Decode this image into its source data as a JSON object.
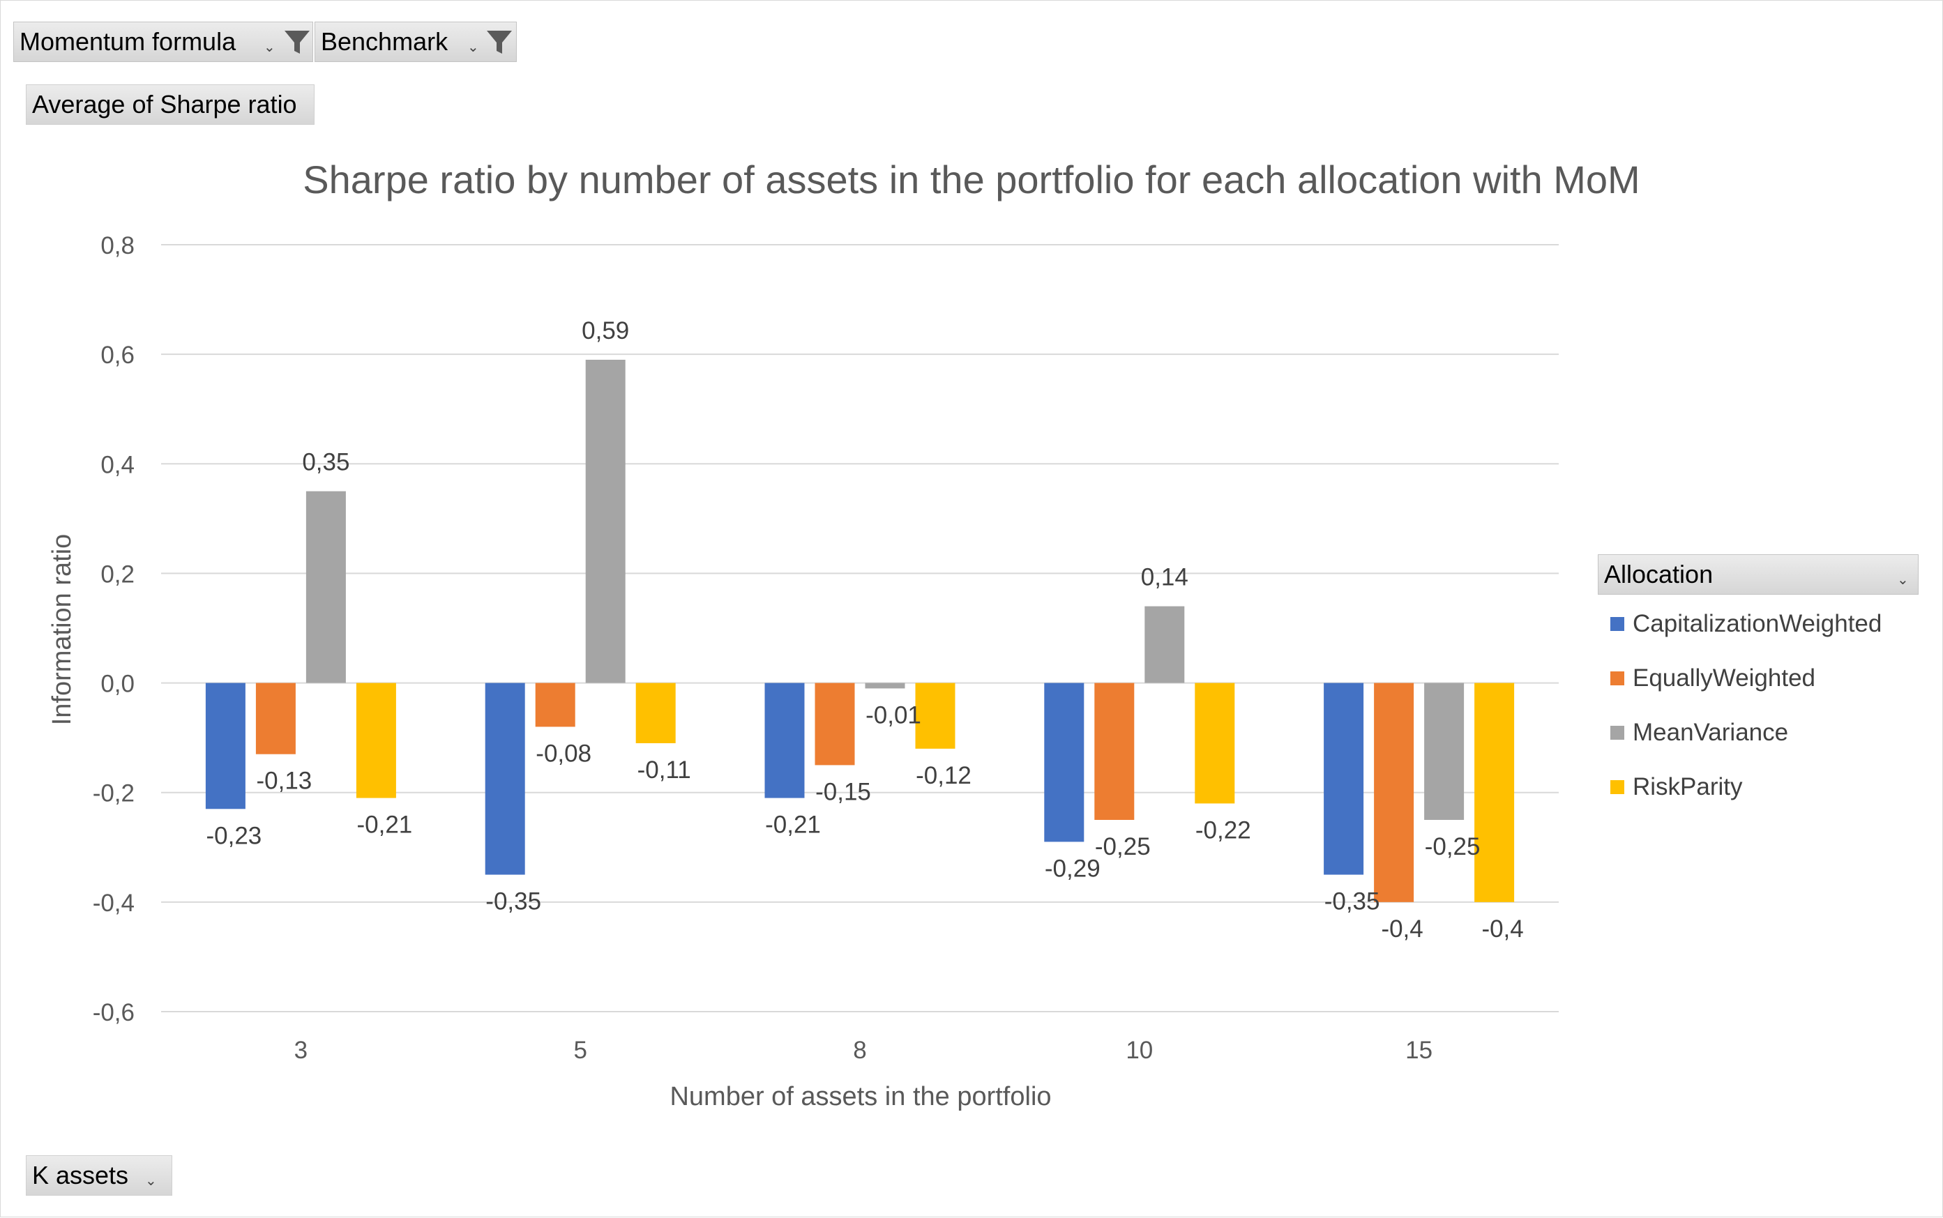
{
  "filters": {
    "momentum_formula": "Momentum formula",
    "benchmark": "Benchmark",
    "value_field": "Average of Sharpe ratio",
    "row_field": "K assets",
    "legend_field": "Allocation"
  },
  "chart_data": {
    "type": "bar",
    "title": "Sharpe ratio by number of assets in the portfolio for each allocation with MoM",
    "xlabel": "Number of assets in the portfolio",
    "ylabel": "Information ratio",
    "categories": [
      "3",
      "5",
      "8",
      "10",
      "15"
    ],
    "ylim": [
      -0.6,
      0.8
    ],
    "yticks": [
      -0.6,
      -0.4,
      -0.2,
      0.0,
      0.2,
      0.4,
      0.6,
      0.8
    ],
    "ytick_labels": [
      "-0,6",
      "-0,4",
      "-0,2",
      "0,0",
      "0,2",
      "0,4",
      "0,6",
      "0,8"
    ],
    "grid": true,
    "legend_position": "right",
    "series": [
      {
        "name": "CapitalizationWeighted",
        "color": "#4472C4",
        "values": [
          -0.23,
          -0.35,
          -0.21,
          -0.29,
          -0.35
        ],
        "labels": [
          "-0,23",
          "-0,35",
          "-0,21",
          "-0,29",
          "-0,35"
        ]
      },
      {
        "name": "EquallyWeighted",
        "color": "#ED7D31",
        "values": [
          -0.13,
          -0.08,
          -0.15,
          -0.25,
          -0.4
        ],
        "labels": [
          "-0,13",
          "-0,08",
          "-0,15",
          "-0,25",
          "-0,4"
        ]
      },
      {
        "name": "MeanVariance",
        "color": "#A5A5A5",
        "values": [
          0.35,
          0.59,
          -0.01,
          0.14,
          -0.25
        ],
        "labels": [
          "0,35",
          "0,59",
          "-0,01",
          "0,14",
          "-0,25"
        ]
      },
      {
        "name": "RiskParity",
        "color": "#FFC000",
        "values": [
          -0.21,
          -0.11,
          -0.12,
          -0.22,
          -0.4
        ],
        "labels": [
          "-0,21",
          "-0,11",
          "-0,12",
          "-0,22",
          "-0,4"
        ]
      }
    ]
  }
}
